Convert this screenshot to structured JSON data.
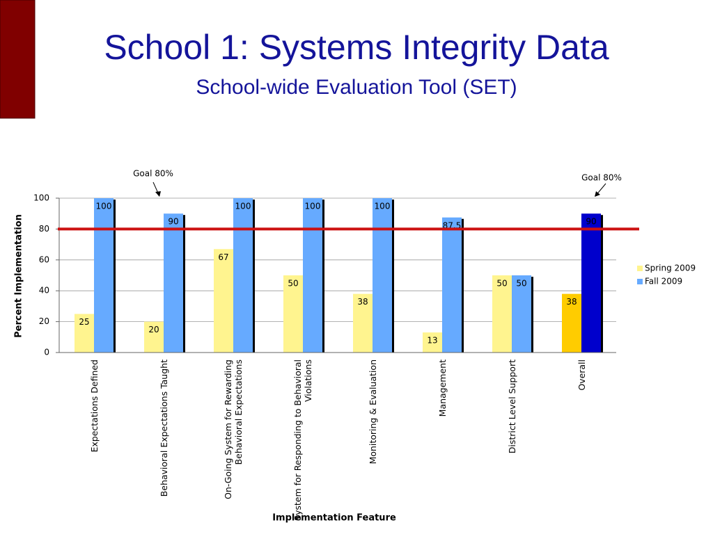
{
  "chart_data": {
    "type": "bar",
    "title": "School 1: Systems Integrity Data",
    "subtitle": "School-wide Evaluation Tool (SET)",
    "y_label": "Percent Implementation",
    "x_label": "Implementation Feature",
    "categories": [
      "Expectations Defined",
      "Behavioral Expectations Taught",
      "On-Going System for Rewarding Behavioral Expectations",
      "System for Responding to Behavioral Violations",
      "Monitoring & Evaluation",
      "Management",
      "District Level Support",
      "Overall"
    ],
    "series": [
      {
        "name": "Spring 2009",
        "color": "#fff48f",
        "colors": [
          "#fff48f",
          "#fff48f",
          "#fff48f",
          "#fff48f",
          "#fff48f",
          "#fff48f",
          "#fff48f",
          "#ffcc00"
        ],
        "values": [
          25,
          20,
          67,
          50,
          38,
          13,
          50,
          38
        ]
      },
      {
        "name": "Fall 2009",
        "color": "#66aaff",
        "colors": [
          "#66aaff",
          "#66aaff",
          "#66aaff",
          "#66aaff",
          "#66aaff",
          "#66aaff",
          "#66aaff",
          "#0000cc"
        ],
        "values": [
          100,
          90,
          100,
          100,
          100,
          87.5,
          50,
          90
        ]
      }
    ],
    "goal": {
      "value": 80,
      "color": "#cc1111",
      "annotations": [
        "Goal 80%",
        "Goal 80%"
      ]
    },
    "ylim": [
      0,
      100
    ],
    "yticks": [
      0,
      20,
      40,
      60,
      80,
      100
    ],
    "grid": true
  }
}
